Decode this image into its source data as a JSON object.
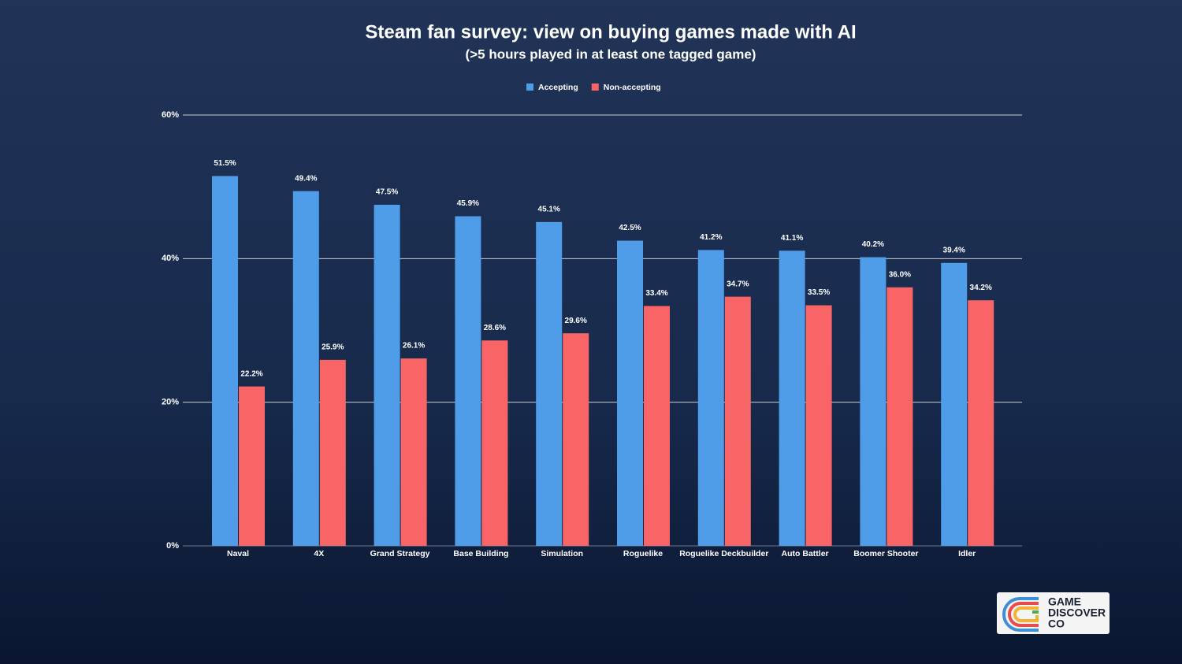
{
  "chart_data": {
    "type": "bar",
    "title": "Steam fan survey: view on buying games made with AI",
    "subtitle": "(>5 hours played in at least one tagged game)",
    "categories": [
      "Naval",
      "4X",
      "Grand Strategy",
      "Base Building",
      "Simulation",
      "Roguelike",
      "Roguelike Deckbuilder",
      "Auto Battler",
      "Boomer Shooter",
      "Idler"
    ],
    "series": [
      {
        "name": "Accepting",
        "color": "#4f9de8",
        "values": [
          51.5,
          49.4,
          47.5,
          45.9,
          45.1,
          42.5,
          41.2,
          41.1,
          40.2,
          39.4
        ],
        "value_labels": [
          "51.5%",
          "49.4%",
          "47.5%",
          "45.9%",
          "45.1%",
          "42.5%",
          "41.2%",
          "41.1%",
          "40.2%",
          "39.4%"
        ]
      },
      {
        "name": "Non-accepting",
        "color": "#f96566",
        "values": [
          22.2,
          25.9,
          26.1,
          28.6,
          29.6,
          33.4,
          34.7,
          33.5,
          36.0,
          34.2
        ],
        "value_labels": [
          "22.2%",
          "25.9%",
          "26.1%",
          "28.6%",
          "29.6%",
          "33.4%",
          "34.7%",
          "33.5%",
          "36.0%",
          "34.2%"
        ]
      }
    ],
    "ylim": [
      0,
      60
    ],
    "yticks": [
      {
        "value": 0,
        "label": "0%"
      },
      {
        "value": 20,
        "label": "20%"
      },
      {
        "value": 40,
        "label": "40%"
      },
      {
        "value": 60,
        "label": "60%"
      }
    ],
    "grid": true,
    "legend": "top",
    "logo_text": [
      "GAME",
      "DISCOVER",
      "CO"
    ]
  }
}
